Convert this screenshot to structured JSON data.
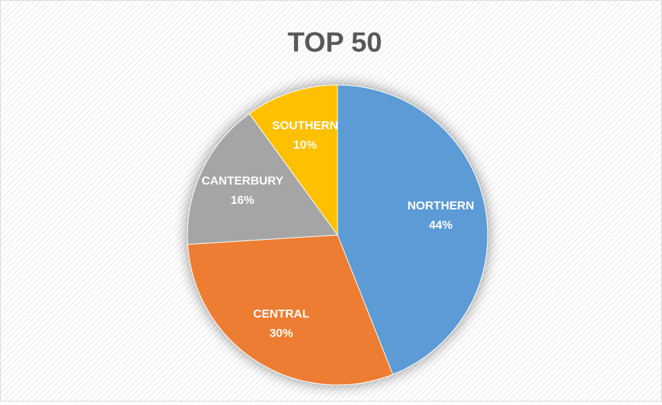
{
  "chart_data": {
    "type": "pie",
    "title": "TOP 50",
    "categories": [
      "NORTHERN",
      "CENTRAL",
      "CANTERBURY",
      "SOUTHERN"
    ],
    "values": [
      44,
      30,
      16,
      10
    ],
    "value_labels": [
      "44%",
      "30%",
      "16%",
      "10%"
    ],
    "colors": [
      "#5b9bd5",
      "#ed7d31",
      "#a5a5a5",
      "#ffc000"
    ]
  }
}
